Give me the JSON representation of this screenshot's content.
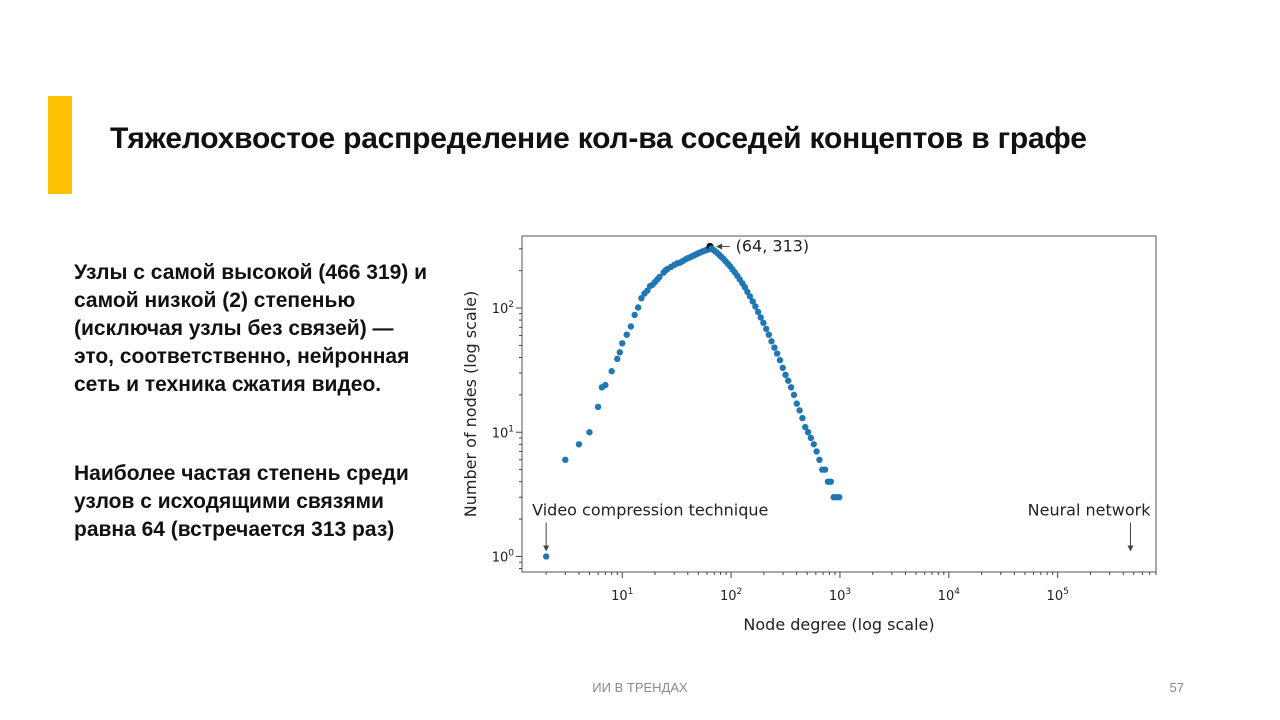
{
  "slide": {
    "title": "Тяжелохвостое распределение кол-ва соседей концептов в графе",
    "accent_color": "#FFC000",
    "paragraphs": [
      "Узлы с самой высокой (466 319) и самой низкой (2) степенью (исключая узлы без связей) — это, соответственно, нейронная сеть и техника сжатия видео.",
      "Наиболее частая степень среди узлов с исходящими связями равна 64 (встречается 313 раз)"
    ],
    "footer_label": "ИИ В ТРЕНДАХ",
    "page_number": "57"
  },
  "chart_data": {
    "type": "scatter",
    "xlabel": "Node degree (log scale)",
    "ylabel": "Number of nodes (log scale)",
    "x_scale": "log",
    "y_scale": "log",
    "xlim": [
      1.2,
      800000
    ],
    "ylim": [
      0.75,
      380
    ],
    "x_ticks": [
      10,
      100,
      1000,
      10000,
      100000
    ],
    "x_tick_labels": [
      "10^1",
      "10^2",
      "10^3",
      "10^4",
      "10^5"
    ],
    "y_ticks": [
      1,
      10,
      100
    ],
    "y_tick_labels": [
      "10^0",
      "10^1",
      "10^2"
    ],
    "grid": false,
    "series_color": "#1F77B4",
    "highlight_color": "#111111",
    "points": [
      [
        2,
        1
      ],
      [
        3,
        6
      ],
      [
        4,
        8
      ],
      [
        5,
        10
      ],
      [
        6,
        16
      ],
      [
        6.5,
        23
      ],
      [
        7,
        24
      ],
      [
        8,
        31
      ],
      [
        9,
        39
      ],
      [
        9.5,
        44
      ],
      [
        10,
        52
      ],
      [
        11,
        61
      ],
      [
        12,
        71
      ],
      [
        13,
        88
      ],
      [
        14,
        101
      ],
      [
        15,
        120
      ],
      [
        16,
        131
      ],
      [
        17,
        138
      ],
      [
        18,
        150
      ],
      [
        19,
        154
      ],
      [
        20,
        162
      ],
      [
        21,
        170
      ],
      [
        22,
        178
      ],
      [
        24,
        193
      ],
      [
        25,
        201
      ],
      [
        26,
        206
      ],
      [
        28,
        214
      ],
      [
        30,
        222
      ],
      [
        32,
        229
      ],
      [
        34,
        232
      ],
      [
        36,
        239
      ],
      [
        38,
        246
      ],
      [
        40,
        252
      ],
      [
        42,
        256
      ],
      [
        44,
        262
      ],
      [
        46,
        266
      ],
      [
        48,
        271
      ],
      [
        50,
        276
      ],
      [
        52,
        280
      ],
      [
        54,
        284
      ],
      [
        56,
        288
      ],
      [
        58,
        291
      ],
      [
        60,
        294
      ],
      [
        62,
        297
      ],
      [
        64,
        313
      ],
      [
        66,
        300
      ],
      [
        68,
        296
      ],
      [
        70,
        290
      ],
      [
        72,
        284
      ],
      [
        75,
        276
      ],
      [
        78,
        268
      ],
      [
        81,
        259
      ],
      [
        85,
        249
      ],
      [
        89,
        238
      ],
      [
        93,
        228
      ],
      [
        98,
        217
      ],
      [
        103,
        205
      ],
      [
        108,
        194
      ],
      [
        114,
        182
      ],
      [
        120,
        170
      ],
      [
        127,
        158
      ],
      [
        134,
        147
      ],
      [
        141,
        135
      ],
      [
        149,
        124
      ],
      [
        158,
        113
      ],
      [
        167,
        103
      ],
      [
        177,
        93
      ],
      [
        187,
        84
      ],
      [
        198,
        76
      ],
      [
        210,
        68
      ],
      [
        222,
        61
      ],
      [
        235,
        54
      ],
      [
        250,
        48
      ],
      [
        265,
        43
      ],
      [
        281,
        38
      ],
      [
        298,
        33
      ],
      [
        316,
        29
      ],
      [
        335,
        26
      ],
      [
        356,
        23
      ],
      [
        378,
        20
      ],
      [
        401,
        17
      ],
      [
        426,
        15
      ],
      [
        452,
        13
      ],
      [
        480,
        11
      ],
      [
        510,
        10
      ],
      [
        541,
        9
      ],
      [
        575,
        8
      ],
      [
        610,
        7
      ],
      [
        648,
        6
      ],
      [
        688,
        5
      ],
      [
        730,
        5
      ],
      [
        776,
        4
      ],
      [
        824,
        4
      ],
      [
        875,
        3
      ],
      [
        929,
        3
      ],
      [
        986,
        3
      ]
    ],
    "annotations": [
      {
        "text": "(64, 313)",
        "x": 64,
        "y": 313,
        "label_x": 110,
        "label_y": 313
      },
      {
        "text": "Video compression technique",
        "x": 2,
        "y": 1,
        "label_x": 2,
        "label_y": 2.1
      },
      {
        "text": "Neural network",
        "x": 466319,
        "y": 1,
        "label_x": 466319,
        "label_y": 2.1
      }
    ],
    "node_degree_extremes": {
      "min": 2,
      "max": 466319
    }
  }
}
